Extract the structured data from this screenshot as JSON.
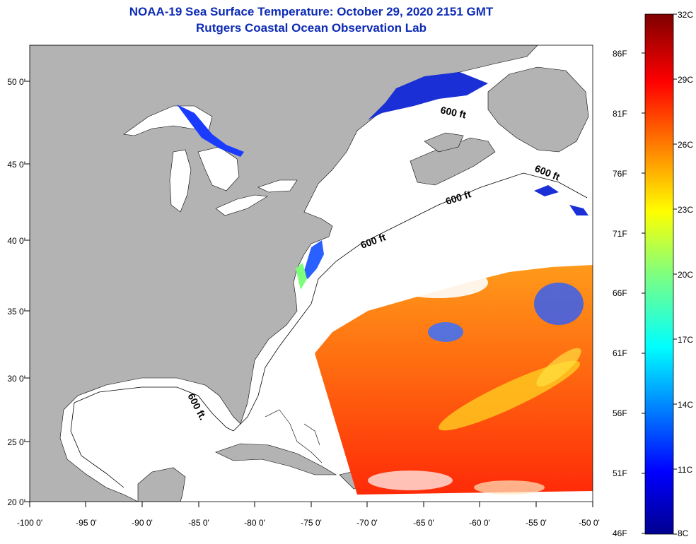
{
  "title": "NOAA-19 Sea Surface Temperature:  October 29, 2020 2151 GMT",
  "subtitle": "Rutgers Coastal Ocean Observation Lab",
  "map": {
    "lon_range": [
      -100,
      -50
    ],
    "lat_range": [
      20,
      52.5
    ],
    "lat_ticks": [
      "20 0'",
      "25 0'",
      "30 0'",
      "35 0'",
      "40 0'",
      "45 0'",
      "50 0'"
    ],
    "lon_ticks": [
      "-100 0'",
      "-95 0'",
      "-90 0'",
      "-85 0'",
      "-80 0'",
      "-75 0'",
      "-70 0'",
      "-65 0'",
      "-60 0'",
      "-55 0'",
      "-50 0'"
    ],
    "contour_labels": [
      "600 ft",
      "600 ft",
      "600 ft",
      "600 ft",
      "600 ft."
    ],
    "land_color": "#b3b3b3",
    "ocean_nodata_color": "#ffffff"
  },
  "colorbar": {
    "fahrenheit": [
      "86F",
      "81F",
      "76F",
      "71F",
      "66F",
      "61F",
      "56F",
      "51F",
      "46F"
    ],
    "celsius": [
      "32C",
      "29C",
      "26C",
      "23C",
      "20C",
      "17C",
      "14C",
      "11C",
      "8C"
    ],
    "range_c": [
      8,
      32
    ],
    "colormap": "jet"
  }
}
